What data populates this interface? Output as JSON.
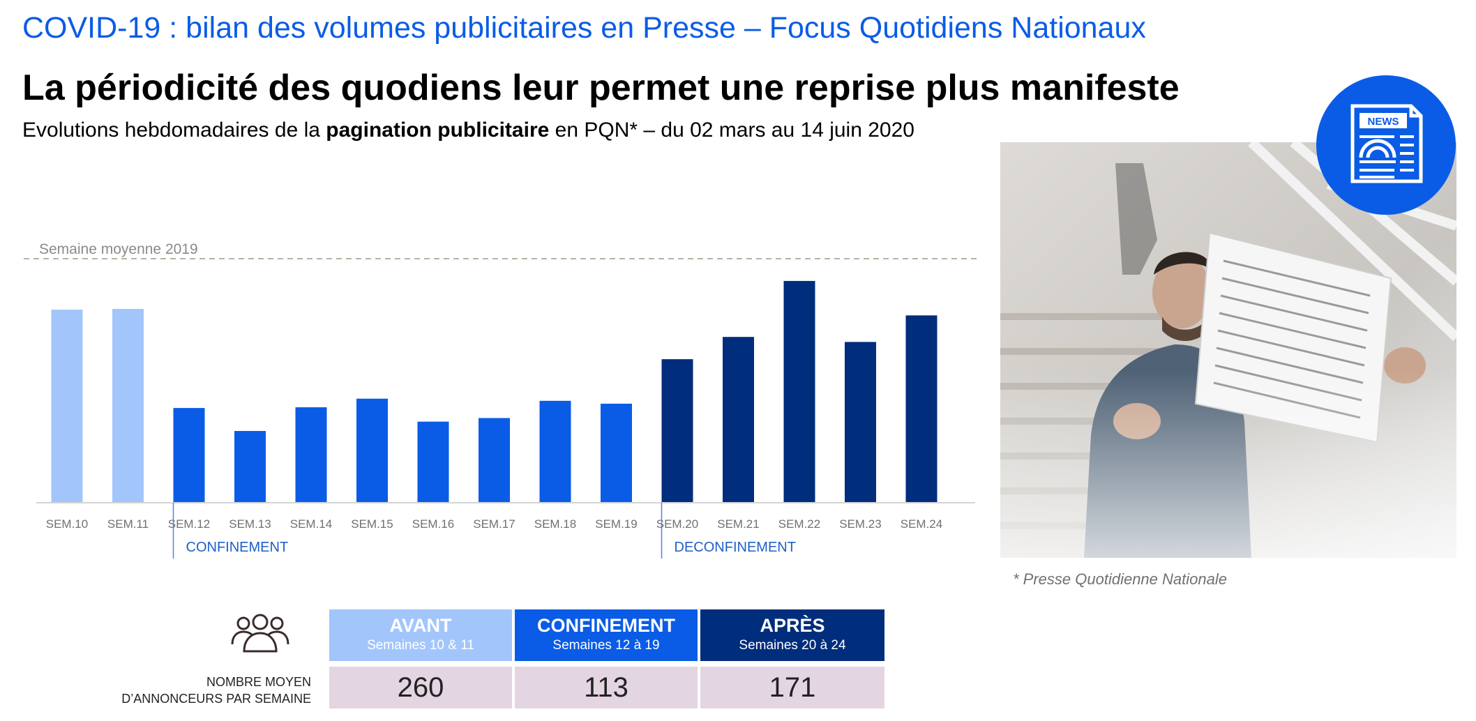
{
  "header": {
    "top_title": "COVID-19 : bilan des volumes publicitaires en Presse – Focus Quotidiens Nationaux",
    "headline": "La périodicité des quodiens leur permet une reprise plus manifeste",
    "subtitle_pre": "Evolutions hebdomadaires de la ",
    "subtitle_bold": "pagination publicitaire",
    "subtitle_post": " en PQN* – du 02 mars au 14 juin 2020"
  },
  "chart_data": {
    "type": "bar",
    "categories": [
      "SEM.10",
      "SEM.11",
      "SEM.12",
      "SEM.13",
      "SEM.14",
      "SEM.15",
      "SEM.16",
      "SEM.17",
      "SEM.18",
      "SEM.19",
      "SEM.20",
      "SEM.21",
      "SEM.22",
      "SEM.23",
      "SEM.24"
    ],
    "values": [
      269,
      270,
      132,
      100,
      133,
      145,
      113,
      118,
      142,
      138,
      200,
      231,
      309,
      224,
      261
    ],
    "ylim": [
      0,
      340
    ],
    "reference_line": {
      "label": "Semaine moyenne 2019",
      "value": 340
    },
    "phase_colors": [
      "#a2c6fb",
      "#a2c6fb",
      "#0a5ce6",
      "#0a5ce6",
      "#0a5ce6",
      "#0a5ce6",
      "#0a5ce6",
      "#0a5ce6",
      "#0a5ce6",
      "#0a5ce6",
      "#002d7c",
      "#002d7c",
      "#002d7c",
      "#002d7c",
      "#002d7c"
    ],
    "annotations": [
      {
        "label": "CONFINEMENT",
        "at_category": "SEM.12"
      },
      {
        "label": "DECONFINEMENT",
        "at_category": "SEM.20"
      }
    ],
    "grid": false,
    "note": "relative values read from bar heights; no value axis shown"
  },
  "footnote": "* Presse Quotidienne Nationale",
  "photo": {
    "badge_text": "NEWS",
    "badge_icon": "newspaper-icon",
    "badge_color": "#0a5ce6"
  },
  "summary_table": {
    "row_label_line1": "NOMBRE MOYEN",
    "row_label_line2": "D’ANNONCEURS PAR SEMAINE",
    "icon": "people-icon",
    "columns": [
      {
        "label": "AVANT",
        "sublabel": "Semaines 10 & 11",
        "value": "260",
        "color": "#a2c6fb"
      },
      {
        "label": "CONFINEMENT",
        "sublabel": "Semaines 12 à 19",
        "value": "113",
        "color": "#0a5ce6"
      },
      {
        "label": "APRÈS",
        "sublabel": "Semaines 20 à 24",
        "value": "171",
        "color": "#002d7c"
      }
    ]
  },
  "colors": {
    "accent": "#0a5ce6",
    "light": "#a2c6fb",
    "dark": "#002d7c",
    "cell_bg": "#e3d5e2"
  }
}
